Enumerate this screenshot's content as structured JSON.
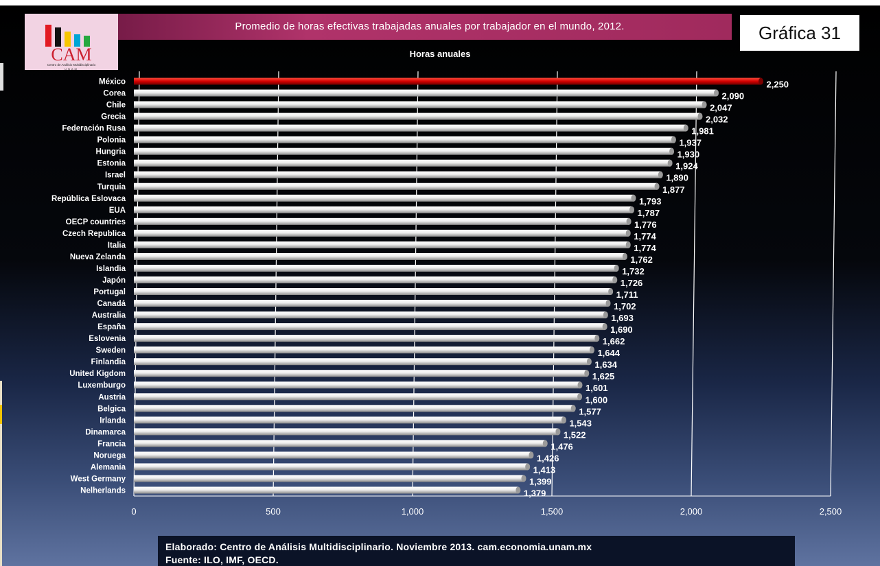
{
  "header": {
    "title": "Promedio de horas efectivas trabajadas anuales por trabajador en el mundo, 2012.",
    "badge": "Gráfica 31"
  },
  "logo": {
    "text": "CAM",
    "subtitle": "Centro de Análisis Multidisciplinario",
    "institution": "UNAM",
    "bar_colors": [
      "#e21b23",
      "#111111",
      "#f7c600",
      "#00a6d6",
      "#27a83f"
    ]
  },
  "footer": {
    "line1": "Elaborado: Centro de Análisis Multidisciplinario. Noviembre 2013. cam.economia.unam.mx",
    "line2": "Fuente: ILO, IMF, OECD."
  },
  "chart_data": {
    "type": "bar",
    "orientation": "horizontal",
    "title": "Horas anuales",
    "categories": [
      "México",
      "Corea",
      "Chile",
      "Grecia",
      "Federación Rusa",
      "Polonia",
      "Hungria",
      "Estonia",
      "Israel",
      "Turquia",
      "República Eslovaca",
      "EUA",
      "OECP countries",
      "Czech Republica",
      "Italia",
      "Nueva Zelanda",
      "Islandia",
      "Japón",
      "Portugal",
      "Canadá",
      "Australia",
      "España",
      "Eslovenia",
      "Sweden",
      "Finlandia",
      "United Kigdom",
      "Luxemburgo",
      "Austria",
      "Belgica",
      "Irlanda",
      "Dinamarca",
      "Francia",
      "Noruega",
      "Alemania",
      "West Germany",
      "Nelherlands"
    ],
    "values": [
      2250,
      2090,
      2047,
      2032,
      1981,
      1937,
      1930,
      1924,
      1890,
      1877,
      1793,
      1787,
      1776,
      1774,
      1774,
      1762,
      1732,
      1726,
      1711,
      1702,
      1693,
      1690,
      1662,
      1644,
      1634,
      1625,
      1601,
      1600,
      1577,
      1543,
      1522,
      1476,
      1426,
      1413,
      1399,
      1379
    ],
    "value_labels": [
      "2,250",
      "2,090",
      "2,047",
      "2,032",
      "1,981",
      "1,937",
      "1,930",
      "1,924",
      "1,890",
      "1,877",
      "1,793",
      "1,787",
      "1,776",
      "1,774",
      "1,774",
      "1,762",
      "1,732",
      "1,726",
      "1,711",
      "1,702",
      "1,693",
      "1,690",
      "1,662",
      "1,644",
      "1,634",
      "1,625",
      "1,601",
      "1,600",
      "1,577",
      "1,543",
      "1,522",
      "1,476",
      "1,426",
      "1,413",
      "1,399",
      "1,379"
    ],
    "xticks": [
      0,
      500,
      1000,
      1500,
      2000,
      2500
    ],
    "xtick_labels": [
      "0",
      "500",
      "1,000",
      "1,500",
      "2,000",
      "2,500"
    ],
    "xlim": [
      0,
      2500
    ],
    "grid": "vertical",
    "highlight_category": "México",
    "highlight_color": "#c40000",
    "bar_color": "#e6e6e6"
  }
}
